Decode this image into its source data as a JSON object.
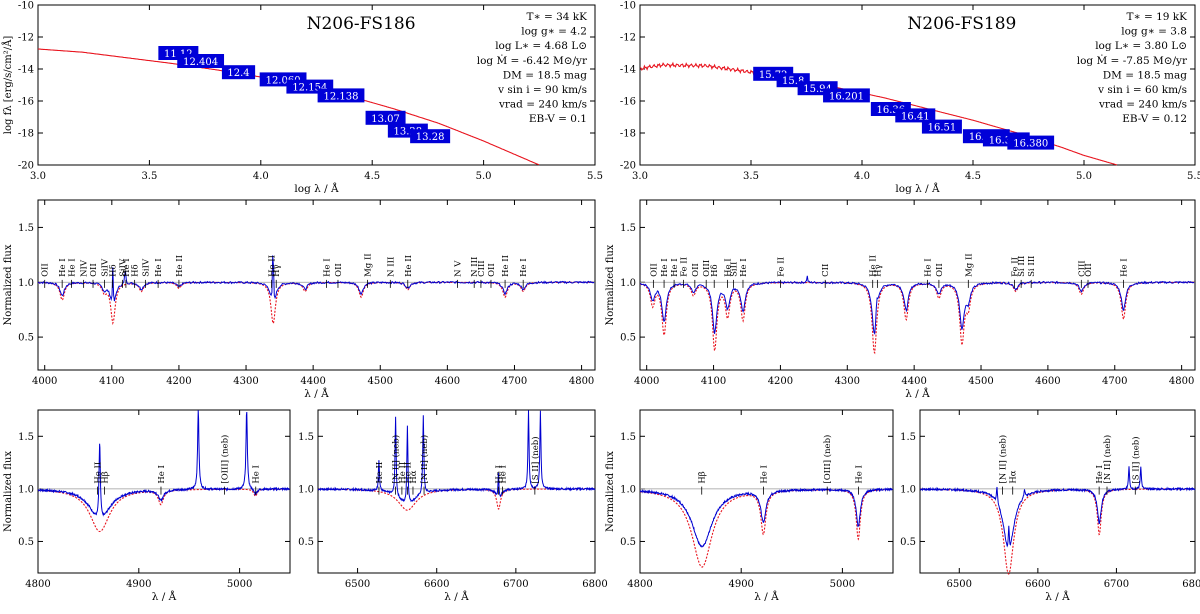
{
  "chart_data": [
    {
      "id": "sed-left",
      "type": "line",
      "title": "N206-FS186",
      "xlabel": "log λ / Å",
      "ylabel": "log fλ [erg/s/cm²/Å]",
      "xlim": [
        3.0,
        5.5
      ],
      "ylim": [
        -20,
        -10
      ],
      "xticks": [
        "3.0",
        "3.5",
        "4.0",
        "4.5",
        "5.0",
        "5.5"
      ],
      "yticks": [
        "-10",
        "-12",
        "-14",
        "-16",
        "-18",
        "-20"
      ],
      "model": {
        "x": [
          3.0,
          3.2,
          3.4,
          3.6,
          3.8,
          4.0,
          4.2,
          4.4,
          4.6,
          4.8,
          5.0,
          5.1,
          5.25
        ],
        "y": [
          -12.75,
          -12.95,
          -13.3,
          -13.65,
          -14.05,
          -14.5,
          -15.05,
          -15.7,
          -16.5,
          -17.4,
          -18.5,
          -19.1,
          -20.0
        ]
      },
      "photometry": [
        {
          "label": "11.12",
          "x": 3.63,
          "y": -13.0
        },
        {
          "label": "12.404",
          "x": 3.73,
          "y": -13.5
        },
        {
          "label": "12.4",
          "x": 3.9,
          "y": -14.2
        },
        {
          "label": "12.060",
          "x": 4.1,
          "y": -14.65
        },
        {
          "label": "12.154",
          "x": 4.22,
          "y": -15.1
        },
        {
          "label": "12.138",
          "x": 4.36,
          "y": -15.65
        },
        {
          "label": "13.07",
          "x": 4.56,
          "y": -17.05
        },
        {
          "label": "13.28",
          "x": 4.66,
          "y": -17.85
        },
        {
          "label": "13.28",
          "x": 4.76,
          "y": -18.2
        }
      ],
      "params": [
        "T∗ = 34 kK",
        "log g∗ = 4.2",
        "log L∗ = 4.68 L⊙",
        "log Ṁ = -6.42 M⊙/yr",
        "DM = 18.5 mag",
        "v sin i = 90 km/s",
        "vrad = 240 km/s",
        "EB-V = 0.1"
      ]
    },
    {
      "id": "sed-right",
      "type": "line",
      "title": "N206-FS189",
      "xlabel": "log λ / Å",
      "ylabel": "",
      "xlim": [
        3.0,
        5.5
      ],
      "ylim": [
        -20,
        -10
      ],
      "xticks": [
        "3.0",
        "3.5",
        "4.0",
        "4.5",
        "5.0",
        "5.5"
      ],
      "yticks": [
        "-10",
        "-12",
        "-14",
        "-16",
        "-18",
        "-20"
      ],
      "model": {
        "x": [
          3.0,
          3.03,
          3.1,
          3.3,
          3.5,
          3.7,
          3.9,
          4.1,
          4.3,
          4.5,
          4.7,
          4.9,
          5.0,
          5.15
        ],
        "y": [
          -14.0,
          -13.9,
          -13.75,
          -13.8,
          -14.2,
          -14.6,
          -15.2,
          -15.8,
          -16.5,
          -17.2,
          -18.0,
          -18.9,
          -19.4,
          -20.0
        ]
      },
      "photometry": [
        {
          "label": "15.72",
          "x": 3.6,
          "y": -14.3
        },
        {
          "label": "15.8",
          "x": 3.69,
          "y": -14.7
        },
        {
          "label": "15.94",
          "x": 3.8,
          "y": -15.2
        },
        {
          "label": "16.201",
          "x": 3.93,
          "y": -15.65
        },
        {
          "label": "16.36",
          "x": 4.13,
          "y": -16.5
        },
        {
          "label": "16.41",
          "x": 4.24,
          "y": -16.9
        },
        {
          "label": "16.51",
          "x": 4.36,
          "y": -17.6
        },
        {
          "label": "16.472",
          "x": 4.56,
          "y": -18.2
        },
        {
          "label": "16.380",
          "x": 4.65,
          "y": -18.4
        },
        {
          "label": "16.380",
          "x": 4.76,
          "y": -18.6
        }
      ],
      "params": [
        "T∗ = 19 kK",
        "log g∗ = 3.8",
        "log L∗ = 3.80 L⊙",
        "log Ṁ = -7.85 M⊙/yr",
        "DM = 18.5 mag",
        "v sin i = 60 km/s",
        "vrad = 240 km/s",
        "EB-V = 0.12"
      ]
    },
    {
      "id": "blue-left",
      "type": "line",
      "xlabel": "λ / Å",
      "ylabel": "Normalized flux",
      "xlim": [
        3990,
        4820
      ],
      "ylim": [
        0.2,
        1.75
      ],
      "xticks": [
        "4000",
        "4100",
        "4200",
        "4300",
        "4400",
        "4500",
        "4600",
        "4700",
        "4800"
      ],
      "yticks": [
        "0.5",
        "1.0",
        "1.5"
      ],
      "lines": [
        {
          "x": 4026,
          "d": 0.12
        },
        {
          "x": 4089,
          "d": 0.06
        },
        {
          "x": 4101.7,
          "d": 0.27
        },
        {
          "x": 4144,
          "d": 0.06
        },
        {
          "x": 4200,
          "d": 0.04
        },
        {
          "x": 4340.5,
          "d": 0.28
        },
        {
          "x": 4388,
          "d": 0.06
        },
        {
          "x": 4471.5,
          "d": 0.1
        },
        {
          "x": 4541,
          "d": 0.05
        },
        {
          "x": 4686,
          "d": 0.1
        },
        {
          "x": 4713,
          "d": 0.06
        }
      ],
      "emission": [
        {
          "x": 4340.3,
          "h": 0.72
        },
        {
          "x": 4101.5,
          "h": 0.42
        },
        {
          "x": 4120,
          "h": 0.15
        }
      ],
      "labels": [
        {
          "text": "OII",
          "x": 4000
        },
        {
          "text": "He I",
          "x": 4026
        },
        {
          "text": "He I",
          "x": 4040
        },
        {
          "text": "NIV",
          "x": 4058
        },
        {
          "text": "OII",
          "x": 4072
        },
        {
          "text": "SiIV",
          "x": 4089
        },
        {
          "text": "Hδ",
          "x": 4101
        },
        {
          "text": "SiIV",
          "x": 4116
        },
        {
          "text": "He I",
          "x": 4121
        },
        {
          "text": "Hδ",
          "x": 4134
        },
        {
          "text": "SiIV",
          "x": 4150
        },
        {
          "text": "He I",
          "x": 4169
        },
        {
          "text": "He II",
          "x": 4200
        },
        {
          "text": "He II",
          "x": 4338
        },
        {
          "text": "Hγ",
          "x": 4345
        },
        {
          "text": "He I",
          "x": 4420
        },
        {
          "text": "OII",
          "x": 4437
        },
        {
          "text": "Mg II",
          "x": 4481
        },
        {
          "text": "N III",
          "x": 4515
        },
        {
          "text": "He II",
          "x": 4541
        },
        {
          "text": "N V",
          "x": 4615
        },
        {
          "text": "N III",
          "x": 4640
        },
        {
          "text": "CIII",
          "x": 4650
        },
        {
          "text": "OII",
          "x": 4665
        },
        {
          "text": "He II",
          "x": 4686
        },
        {
          "text": "He I",
          "x": 4713
        }
      ]
    },
    {
      "id": "blue-right",
      "type": "line",
      "xlabel": "λ / Å",
      "ylabel": "Normalized flux",
      "xlim": [
        3990,
        4820
      ],
      "ylim": [
        0.2,
        1.75
      ],
      "xticks": [
        "4000",
        "4100",
        "4200",
        "4300",
        "4400",
        "4500",
        "4600",
        "4700",
        "4800"
      ],
      "yticks": [
        "0.5",
        "1.0",
        "1.5"
      ],
      "lines": [
        {
          "x": 4009,
          "d": 0.15
        },
        {
          "x": 4026,
          "d": 0.35
        },
        {
          "x": 4070,
          "d": 0.08
        },
        {
          "x": 4101.7,
          "d": 0.45
        },
        {
          "x": 4121,
          "d": 0.22
        },
        {
          "x": 4144,
          "d": 0.25
        },
        {
          "x": 4340.5,
          "d": 0.48
        },
        {
          "x": 4388,
          "d": 0.25
        },
        {
          "x": 4437,
          "d": 0.1
        },
        {
          "x": 4471.5,
          "d": 0.4
        },
        {
          "x": 4481,
          "d": 0.15
        },
        {
          "x": 4552,
          "d": 0.06
        },
        {
          "x": 4650,
          "d": 0.08
        },
        {
          "x": 4713,
          "d": 0.25
        }
      ],
      "emission": [
        {
          "x": 4240,
          "h": 0.06
        },
        {
          "x": 4344,
          "h": 0.15
        }
      ],
      "labels": [
        {
          "text": "OII",
          "x": 4010
        },
        {
          "text": "He I",
          "x": 4026
        },
        {
          "text": "He I",
          "x": 4041
        },
        {
          "text": "Fe II",
          "x": 4055
        },
        {
          "text": "OII",
          "x": 4072
        },
        {
          "text": "OIII",
          "x": 4089
        },
        {
          "text": "Hδ",
          "x": 4101
        },
        {
          "text": "He I",
          "x": 4121
        },
        {
          "text": "SiII",
          "x": 4130
        },
        {
          "text": "He I",
          "x": 4144
        },
        {
          "text": "Fe II",
          "x": 4200
        },
        {
          "text": "CII",
          "x": 4267
        },
        {
          "text": "He II",
          "x": 4338
        },
        {
          "text": "Hγ",
          "x": 4345
        },
        {
          "text": "He I",
          "x": 4420
        },
        {
          "text": "OII",
          "x": 4437
        },
        {
          "text": "Mg II",
          "x": 4481
        },
        {
          "text": "Fe II",
          "x": 4550
        },
        {
          "text": "Si III",
          "x": 4560
        },
        {
          "text": "Si III",
          "x": 4575
        },
        {
          "text": "CIII",
          "x": 4650
        },
        {
          "text": "OII",
          "x": 4660
        },
        {
          "text": "He I",
          "x": 4713
        }
      ]
    },
    {
      "id": "hb-left",
      "type": "line",
      "xlabel": "λ / Å",
      "ylabel": "Normalized flux",
      "xlim": [
        4800,
        5050
      ],
      "ylim": [
        0.2,
        1.75
      ],
      "xticks": [
        "4800",
        "4900",
        "5000"
      ],
      "yticks": [
        "0.5",
        "1.0",
        "1.5"
      ],
      "lines": [
        {
          "x": 4861.3,
          "d": 0.3,
          "w": 12
        },
        {
          "x": 4921.9,
          "d": 0.1,
          "w": 3
        },
        {
          "x": 5015.7,
          "d": 0.05,
          "w": 2
        }
      ],
      "emission": [
        {
          "x": 4861.2,
          "h": 0.75
        },
        {
          "x": 4959,
          "h": 0.75
        },
        {
          "x": 5007,
          "h": 0.75
        }
      ],
      "labels": [
        {
          "text": "He II",
          "x": 4859
        },
        {
          "text": "Hβ",
          "x": 4866
        },
        {
          "text": "He I",
          "x": 4922
        },
        {
          "text": "[OIII] (neb)",
          "x": 4985
        },
        {
          "text": "He I",
          "x": 5016
        }
      ]
    },
    {
      "id": "ha-left",
      "type": "line",
      "xlabel": "λ / Å",
      "ylabel": "",
      "xlim": [
        6450,
        6800
      ],
      "ylim": [
        0.2,
        1.75
      ],
      "xticks": [
        "6500",
        "6600",
        "6700",
        "6800"
      ],
      "yticks": [
        "0.5",
        "1.0",
        "1.5"
      ],
      "lines": [
        {
          "x": 6562.8,
          "d": 0.15,
          "w": 14
        },
        {
          "x": 6678.2,
          "d": 0.14,
          "w": 3
        }
      ],
      "emission": [
        {
          "x": 6527,
          "h": 0.3
        },
        {
          "x": 6548,
          "h": 0.75
        },
        {
          "x": 6563,
          "h": 0.75
        },
        {
          "x": 6583,
          "h": 0.75
        },
        {
          "x": 6678,
          "h": 0.3
        },
        {
          "x": 6716,
          "h": 0.75
        },
        {
          "x": 6731,
          "h": 0.75
        }
      ],
      "labels": [
        {
          "text": "He II",
          "x": 6527
        },
        {
          "text": "[N II] (neb)",
          "x": 6548
        },
        {
          "text": "He II",
          "x": 6556
        },
        {
          "text": "He II",
          "x": 6563
        },
        {
          "text": "Hα",
          "x": 6570
        },
        {
          "text": "[N II] (neb)",
          "x": 6584
        },
        {
          "text": "He I",
          "x": 6678
        },
        {
          "text": "He I",
          "x": 6683
        },
        {
          "text": "[S II] (neb)",
          "x": 6724
        }
      ]
    },
    {
      "id": "hb-right",
      "type": "line",
      "xlabel": "λ / Å",
      "ylabel": "Normalized flux",
      "xlim": [
        4800,
        5050
      ],
      "ylim": [
        0.2,
        1.75
      ],
      "xticks": [
        "4800",
        "4900",
        "5000"
      ],
      "yticks": [
        "0.5",
        "1.0",
        "1.5"
      ],
      "lines": [
        {
          "x": 4861.3,
          "d": 0.55,
          "w": 12
        },
        {
          "x": 4921.9,
          "d": 0.3,
          "w": 3
        },
        {
          "x": 5015.7,
          "d": 0.35,
          "w": 2.5
        }
      ],
      "emission": [],
      "labels": [
        {
          "text": "Hβ",
          "x": 4861
        },
        {
          "text": "He I",
          "x": 4922
        },
        {
          "text": "[OIII] (neb)",
          "x": 4985
        },
        {
          "text": "He I",
          "x": 5016
        }
      ]
    },
    {
      "id": "ha-right",
      "type": "line",
      "xlabel": "λ / Å",
      "ylabel": "",
      "xlim": [
        6450,
        6800
      ],
      "ylim": [
        0.2,
        1.75
      ],
      "xticks": [
        "6500",
        "6600",
        "6700",
        "6800"
      ],
      "yticks": [
        "0.5",
        "1.0",
        "1.5"
      ],
      "lines": [
        {
          "x": 6562.8,
          "d": 0.6,
          "w": 8
        },
        {
          "x": 6678.2,
          "d": 0.32,
          "w": 3
        }
      ],
      "emission": [
        {
          "x": 6548,
          "h": 0.15
        },
        {
          "x": 6563,
          "h": 0.25
        },
        {
          "x": 6583,
          "h": 0.08
        },
        {
          "x": 6716,
          "h": 0.22
        },
        {
          "x": 6731,
          "h": 0.22
        }
      ],
      "labels": [
        {
          "text": "[N II] (neb)",
          "x": 6555
        },
        {
          "text": "Hα",
          "x": 6568
        },
        {
          "text": "He I",
          "x": 6678
        },
        {
          "text": "[N II] (neb)",
          "x": 6688
        },
        {
          "text": "[S II] (neb)",
          "x": 6724
        }
      ]
    }
  ]
}
